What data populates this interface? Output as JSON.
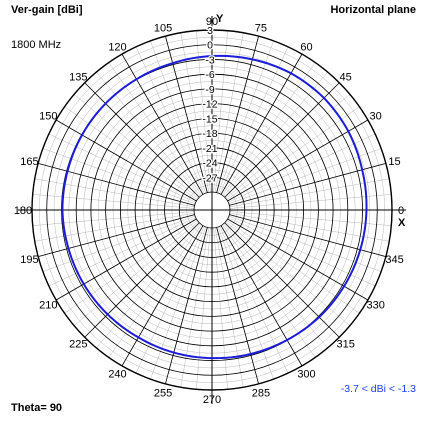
{
  "labels": {
    "ylabel": "Ver-gain [dBi]",
    "frequency": "1800 MHz",
    "plane": "Horizontal plane",
    "theta": "Theta= 90",
    "range": "-3.7 < dBi < -1.3",
    "y_axis": "Y",
    "x_axis": "X"
  },
  "colors": {
    "trace": "#1c1cd9",
    "grid": "#000000",
    "range_text": "#1a3cff"
  },
  "chart_data": {
    "type": "polar",
    "title": "",
    "rlabel": "Ver-gain [dBi]",
    "angle_ticks": [
      0,
      15,
      30,
      45,
      60,
      75,
      90,
      105,
      120,
      135,
      150,
      165,
      180,
      195,
      210,
      225,
      240,
      255,
      270,
      285,
      300,
      315,
      330,
      345
    ],
    "radial_ticks": [
      3,
      0,
      -3,
      -6,
      -9,
      -12,
      -15,
      -18,
      -21,
      -24,
      -27
    ],
    "rlim": [
      -30,
      3
    ],
    "grid": true,
    "series": [
      {
        "angles": [
          0,
          15,
          30,
          45,
          60,
          75,
          90,
          105,
          120,
          135,
          150,
          165,
          180,
          195,
          210,
          225,
          240,
          255,
          270,
          285,
          300,
          315,
          330,
          345
        ],
        "values": [
          -2.2,
          -2.0,
          -1.6,
          -1.4,
          -1.5,
          -1.9,
          -2.3,
          -2.7,
          -2.9,
          -3.0,
          -3.1,
          -3.2,
          -3.2,
          -3.4,
          -3.5,
          -3.6,
          -3.7,
          -3.6,
          -3.5,
          -3.3,
          -3.1,
          -2.8,
          -2.6,
          -2.4
        ]
      }
    ]
  }
}
